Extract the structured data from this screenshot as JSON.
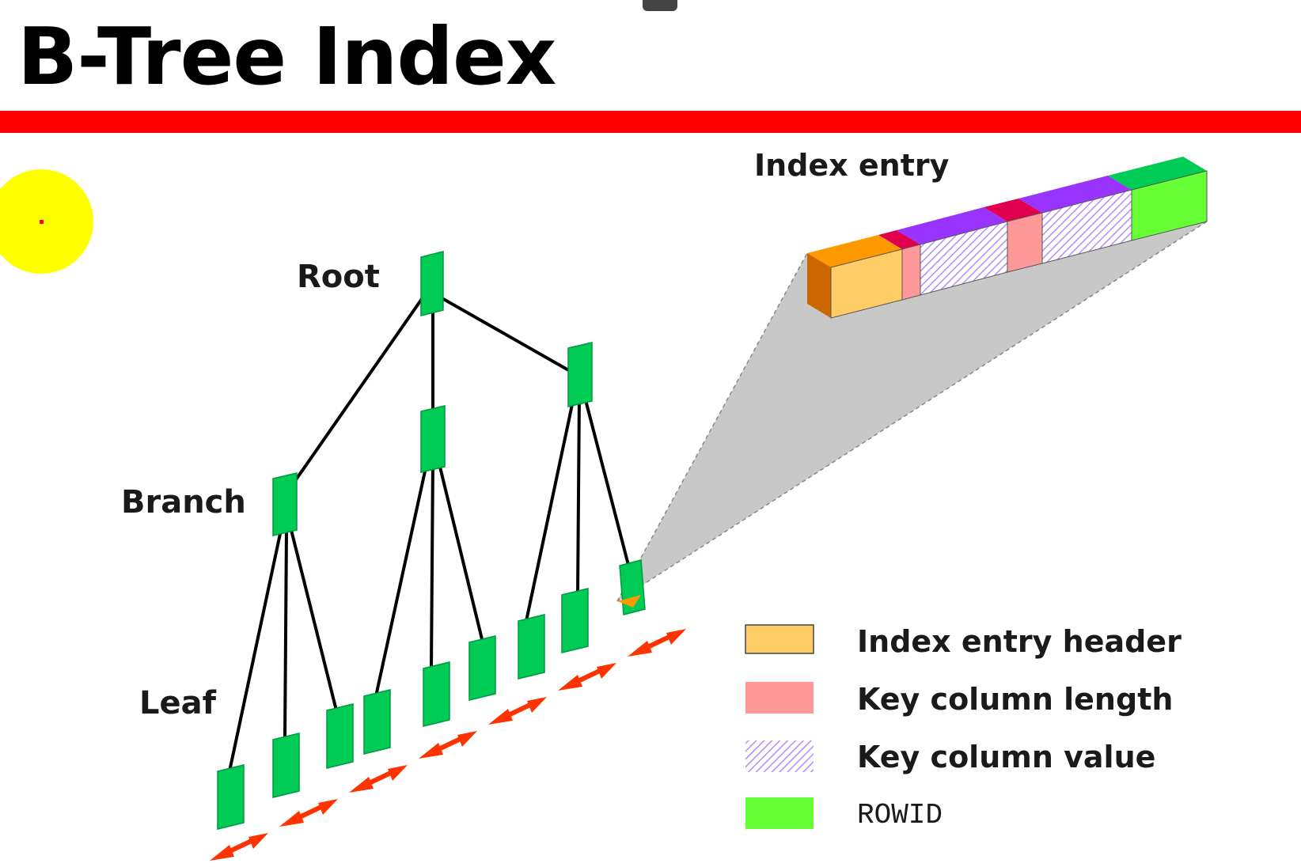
{
  "slide": {
    "title": "B-Tree Index"
  },
  "diagram": {
    "labels": {
      "root": "Root",
      "branch": "Branch",
      "leaf": "Leaf",
      "index_entry": "Index entry"
    },
    "legend": [
      {
        "label": "Index entry header",
        "color": "#FFCC66"
      },
      {
        "label": "Key column length",
        "color": "#FF9999"
      },
      {
        "label": "Key column value",
        "color": "#CC99FF"
      },
      {
        "label": "ROWID",
        "color": "#66FF33"
      }
    ],
    "colors": {
      "title_bar": "#FF0000",
      "node": "#00CC55",
      "leaf_link_arrow": "#FF3300",
      "magnifier": "#C8C8C8",
      "pointer_dot": "#FFFF00"
    }
  }
}
